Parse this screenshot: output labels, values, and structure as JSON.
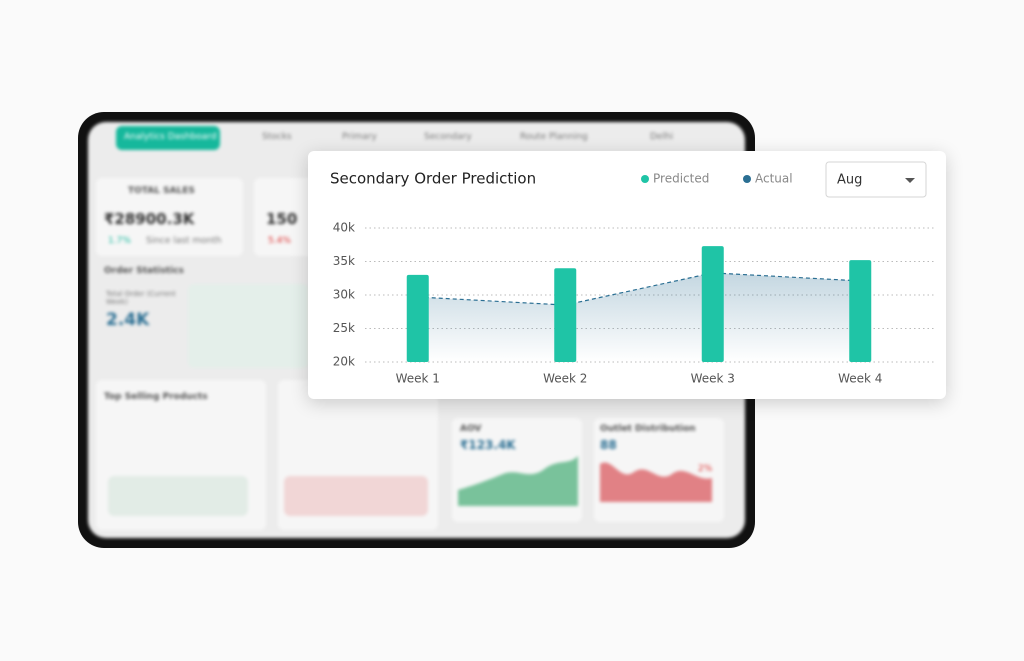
{
  "dashboard": {
    "nav": [
      "Analytics Dashboard",
      "Stocks",
      "Primary",
      "Secondary",
      "Route Planning",
      "Delhi"
    ],
    "total_sales": {
      "title": "TOTAL SALES",
      "value": "₹28900.3K",
      "change": "1.7%",
      "note": "Since last month"
    },
    "total_orders": {
      "value": "150",
      "change": "5.4%"
    },
    "order_statistics": {
      "title": "Order Statistics",
      "label": "Total Order (Current Week)",
      "value": "2.4K"
    },
    "top_selling": {
      "title": "Top Selling Products"
    },
    "aov": {
      "title": "AOV",
      "value": "₹123.4K"
    },
    "outlet": {
      "title": "Outlet Distribution",
      "value": "88",
      "change": "2%"
    }
  },
  "chart_data": {
    "type": "bar-line",
    "title": "Secondary Order Prediction",
    "categories": [
      "Week 1",
      "Week 2",
      "Week 3",
      "Week 4"
    ],
    "series": [
      {
        "name": "Predicted",
        "color": "#1fc4a6",
        "type": "bar",
        "values": [
          33,
          34,
          37.3,
          35.2
        ]
      },
      {
        "name": "Actual",
        "color": "#2b6f93",
        "type": "line",
        "values": [
          29.7,
          28.5,
          33.3,
          32.1
        ]
      }
    ],
    "ylim": [
      20,
      40
    ],
    "yticks": [
      {
        "value": 20,
        "label": "20k"
      },
      {
        "value": 25,
        "label": "25k"
      },
      {
        "value": 30,
        "label": "30k"
      },
      {
        "value": 35,
        "label": "35k"
      },
      {
        "value": 40,
        "label": "40k"
      }
    ],
    "grid": true,
    "selector": "Aug"
  }
}
